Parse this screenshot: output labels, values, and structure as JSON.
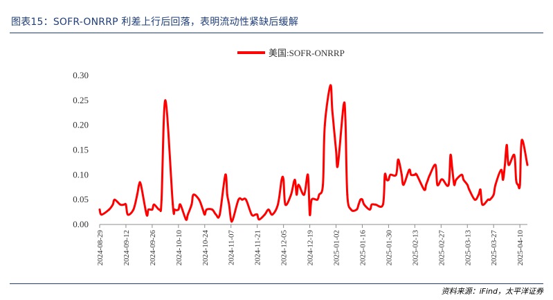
{
  "figure": {
    "title": "图表15：SOFR-ONRRP 利差上行后回落，表明流动性紧缺后缓解",
    "source": "资料来源：iFind，太平洋证券"
  },
  "chart_data": {
    "type": "line",
    "title": "",
    "xlabel": "",
    "ylabel": "",
    "ylim": [
      0,
      0.3
    ],
    "yticks": [
      "0.00",
      "0.05",
      "0.10",
      "0.15",
      "0.20",
      "0.25",
      "0.30"
    ],
    "x_tick_labels": [
      "2024-08-29",
      "2024-09-12",
      "2024-09-26",
      "2024-10-10",
      "2024-10-24",
      "2024-11-07",
      "2024-11-21",
      "2024-12-05",
      "2024-12-19",
      "2025-01-02",
      "2025-01-16",
      "2025-01-30",
      "2025-02-13",
      "2025-02-27",
      "2025-03-13",
      "2025-03-27",
      "2025-04-10"
    ],
    "legend_position": "top-center",
    "grid": false,
    "series": [
      {
        "name": "美国:SOFR-ONRRP",
        "color": "#ff0000",
        "points": [
          [
            "2024-08-29",
            0.03
          ],
          [
            "2024-08-30",
            0.02
          ],
          [
            "2024-09-03",
            0.03
          ],
          [
            "2024-09-05",
            0.04
          ],
          [
            "2024-09-06",
            0.05
          ],
          [
            "2024-09-09",
            0.04
          ],
          [
            "2024-09-11",
            0.04
          ],
          [
            "2024-09-12",
            0.04
          ],
          [
            "2024-09-13",
            0.02
          ],
          [
            "2024-09-16",
            0.03
          ],
          [
            "2024-09-18",
            0.06
          ],
          [
            "2024-09-19",
            0.08
          ],
          [
            "2024-09-20",
            0.08
          ],
          [
            "2024-09-23",
            0.02
          ],
          [
            "2024-09-24",
            0.03
          ],
          [
            "2024-09-26",
            0.03
          ],
          [
            "2024-09-27",
            0.04
          ],
          [
            "2024-09-30",
            0.03
          ],
          [
            "2024-10-01",
            0.05
          ],
          [
            "2024-10-03",
            0.25
          ],
          [
            "2024-10-07",
            0.04
          ],
          [
            "2024-10-08",
            0.03
          ],
          [
            "2024-10-10",
            0.03
          ],
          [
            "2024-10-11",
            0.04
          ],
          [
            "2024-10-14",
            0.01
          ],
          [
            "2024-10-15",
            0.02
          ],
          [
            "2024-10-17",
            0.04
          ],
          [
            "2024-10-18",
            0.06
          ],
          [
            "2024-10-21",
            0.05
          ],
          [
            "2024-10-23",
            0.03
          ],
          [
            "2024-10-24",
            0.02
          ],
          [
            "2024-10-25",
            0.03
          ],
          [
            "2024-10-28",
            0.03
          ],
          [
            "2024-10-30",
            0.02
          ],
          [
            "2024-11-01",
            0.02
          ],
          [
            "2024-11-04",
            0.1
          ],
          [
            "2024-11-05",
            0.06
          ],
          [
            "2024-11-06",
            0.04
          ],
          [
            "2024-11-07",
            0.01
          ],
          [
            "2024-11-08",
            0.01
          ],
          [
            "2024-11-11",
            0.05
          ],
          [
            "2024-11-13",
            0.05
          ],
          [
            "2024-11-15",
            0.05
          ],
          [
            "2024-11-18",
            0.02
          ],
          [
            "2024-11-20",
            0.02
          ],
          [
            "2024-11-21",
            0.02
          ],
          [
            "2024-11-22",
            0.01
          ],
          [
            "2024-11-25",
            0.02
          ],
          [
            "2024-11-27",
            0.03
          ],
          [
            "2024-11-29",
            0.02
          ],
          [
            "2024-12-02",
            0.04
          ],
          [
            "2024-12-04",
            0.09
          ],
          [
            "2024-12-05",
            0.09
          ],
          [
            "2024-12-06",
            0.04
          ],
          [
            "2024-12-09",
            0.06
          ],
          [
            "2024-12-11",
            0.09
          ],
          [
            "2024-12-12",
            0.06
          ],
          [
            "2024-12-13",
            0.08
          ],
          [
            "2024-12-16",
            0.06
          ],
          [
            "2024-12-18",
            0.1
          ],
          [
            "2024-12-19",
            0.02
          ],
          [
            "2024-12-20",
            0.05
          ],
          [
            "2024-12-23",
            0.05
          ],
          [
            "2024-12-24",
            0.06
          ],
          [
            "2024-12-26",
            0.08
          ],
          [
            "2024-12-27",
            0.2
          ],
          [
            "2024-12-30",
            0.28
          ],
          [
            "2024-12-31",
            0.23
          ],
          [
            "2025-01-02",
            0.15
          ],
          [
            "2025-01-03",
            0.12
          ],
          [
            "2025-01-06",
            0.24
          ],
          [
            "2025-01-07",
            0.21
          ],
          [
            "2025-01-08",
            0.06
          ],
          [
            "2025-01-10",
            0.03
          ],
          [
            "2025-01-13",
            0.03
          ],
          [
            "2025-01-14",
            0.04
          ],
          [
            "2025-01-15",
            0.05
          ],
          [
            "2025-01-16",
            0.05
          ],
          [
            "2025-01-17",
            0.04
          ],
          [
            "2025-01-20",
            0.03
          ],
          [
            "2025-01-21",
            0.04
          ],
          [
            "2025-01-23",
            0.04
          ],
          [
            "2025-01-27",
            0.04
          ],
          [
            "2025-01-28",
            0.1
          ],
          [
            "2025-01-29",
            0.09
          ],
          [
            "2025-01-30",
            0.09
          ],
          [
            "2025-01-31",
            0.1
          ],
          [
            "2025-02-03",
            0.1
          ],
          [
            "2025-02-04",
            0.13
          ],
          [
            "2025-02-05",
            0.12
          ],
          [
            "2025-02-06",
            0.1
          ],
          [
            "2025-02-07",
            0.08
          ],
          [
            "2025-02-10",
            0.11
          ],
          [
            "2025-02-11",
            0.1
          ],
          [
            "2025-02-13",
            0.1
          ],
          [
            "2025-02-14",
            0.1
          ],
          [
            "2025-02-18",
            0.07
          ],
          [
            "2025-02-19",
            0.08
          ],
          [
            "2025-02-20",
            0.09
          ],
          [
            "2025-02-21",
            0.1
          ],
          [
            "2025-02-24",
            0.12
          ],
          [
            "2025-02-25",
            0.08
          ],
          [
            "2025-02-27",
            0.09
          ],
          [
            "2025-02-28",
            0.09
          ],
          [
            "2025-03-03",
            0.08
          ],
          [
            "2025-03-04",
            0.14
          ],
          [
            "2025-03-05",
            0.11
          ],
          [
            "2025-03-06",
            0.08
          ],
          [
            "2025-03-07",
            0.09
          ],
          [
            "2025-03-10",
            0.1
          ],
          [
            "2025-03-11",
            0.09
          ],
          [
            "2025-03-13",
            0.08
          ],
          [
            "2025-03-14",
            0.07
          ],
          [
            "2025-03-17",
            0.05
          ],
          [
            "2025-03-19",
            0.06
          ],
          [
            "2025-03-20",
            0.07
          ],
          [
            "2025-03-21",
            0.04
          ],
          [
            "2025-03-24",
            0.05
          ],
          [
            "2025-03-25",
            0.05
          ],
          [
            "2025-03-27",
            0.06
          ],
          [
            "2025-03-28",
            0.08
          ],
          [
            "2025-03-31",
            0.11
          ],
          [
            "2025-04-01",
            0.09
          ],
          [
            "2025-04-02",
            0.12
          ],
          [
            "2025-04-03",
            0.16
          ],
          [
            "2025-04-04",
            0.12
          ],
          [
            "2025-04-07",
            0.14
          ],
          [
            "2025-04-08",
            0.09
          ],
          [
            "2025-04-09",
            0.08
          ],
          [
            "2025-04-10",
            0.08
          ],
          [
            "2025-04-11",
            0.17
          ],
          [
            "2025-04-14",
            0.12
          ]
        ]
      }
    ]
  }
}
